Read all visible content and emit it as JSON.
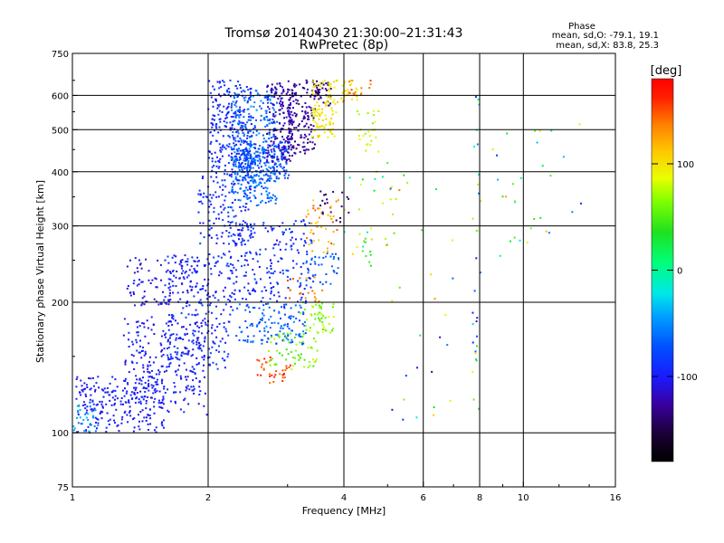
{
  "chart_data": {
    "type": "scatter",
    "title": "Tromsø 20140430 21:30:00–21:31:43",
    "subtitle": "RwPretec (8p)",
    "xlabel": "Frequency [MHz]",
    "ylabel": "Stationary phase Virtual Height [km]",
    "x_scale": "log",
    "y_scale": "log",
    "xlim": [
      1,
      16
    ],
    "ylim": [
      75,
      750
    ],
    "x_ticks": [
      1,
      2,
      4,
      6,
      8,
      10,
      16
    ],
    "x_tick_labels": [
      "1",
      "2",
      "4",
      "6",
      "8",
      "10",
      "16"
    ],
    "y_ticks": [
      75,
      100,
      200,
      300,
      400,
      500,
      600,
      750
    ],
    "y_tick_labels": [
      "75",
      "100",
      "200",
      "300",
      "400",
      "500",
      "600",
      "750"
    ],
    "grid": true,
    "colorbar": {
      "label": "[deg]",
      "range": [
        -180,
        180
      ],
      "ticks": [
        100,
        0,
        -100
      ],
      "tick_labels": [
        "100",
        "0",
        "-100"
      ]
    },
    "stats": {
      "heading": "Phase",
      "line_o": "mean, sd,O: -79.1, 19.1",
      "line_x": "mean, sd,X: 83.8, 25.3"
    },
    "clusters": [
      {
        "f": [
          1.02,
          1.6
        ],
        "h": [
          100,
          135
        ],
        "phase": [
          -112,
          -88
        ],
        "n": 220
      },
      {
        "f": [
          1.0,
          1.15
        ],
        "h": [
          100,
          116
        ],
        "phase": [
          -60,
          -30
        ],
        "n": 30
      },
      {
        "f": [
          1.3,
          2.0
        ],
        "h": [
          110,
          185
        ],
        "phase": [
          -115,
          -85
        ],
        "n": 260
      },
      {
        "f": [
          1.6,
          2.3
        ],
        "h": [
          140,
          260
        ],
        "phase": [
          -110,
          -75
        ],
        "n": 260
      },
      {
        "f": [
          1.3,
          1.9
        ],
        "h": [
          195,
          255
        ],
        "phase": [
          -118,
          -95
        ],
        "n": 90
      },
      {
        "f": [
          1.9,
          2.5
        ],
        "h": [
          270,
          400
        ],
        "phase": [
          -110,
          -75
        ],
        "n": 150
      },
      {
        "f": [
          2.0,
          2.5
        ],
        "h": [
          400,
          650
        ],
        "phase": [
          -110,
          -75
        ],
        "n": 250
      },
      {
        "f": [
          2.25,
          2.85
        ],
        "h": [
          330,
          620
        ],
        "phase": [
          -80,
          -45
        ],
        "n": 320
      },
      {
        "f": [
          2.25,
          3.05
        ],
        "h": [
          380,
          470
        ],
        "phase": [
          -95,
          -55
        ],
        "n": 200
      },
      {
        "f": [
          2.7,
          3.1
        ],
        "h": [
          420,
          640
        ],
        "phase": [
          -135,
          -110
        ],
        "n": 160
      },
      {
        "f": [
          3.0,
          3.45
        ],
        "h": [
          440,
          650
        ],
        "phase": [
          -140,
          -115
        ],
        "n": 140
      },
      {
        "f": [
          3.4,
          3.75
        ],
        "h": [
          560,
          650
        ],
        "phase": [
          -150,
          -120
        ],
        "n": 40
      },
      {
        "f": [
          3.4,
          3.9
        ],
        "h": [
          480,
          650
        ],
        "phase": [
          80,
          115
        ],
        "n": 100
      },
      {
        "f": [
          3.7,
          4.3
        ],
        "h": [
          580,
          650
        ],
        "phase": [
          80,
          120
        ],
        "n": 30
      },
      {
        "f": [
          4.1,
          4.6
        ],
        "h": [
          600,
          650
        ],
        "phase": [
          125,
          160
        ],
        "n": 14
      },
      {
        "f": [
          4.2,
          4.8
        ],
        "h": [
          430,
          560
        ],
        "phase": [
          60,
          95
        ],
        "n": 25
      },
      {
        "f": [
          2.2,
          3.4
        ],
        "h": [
          200,
          310
        ],
        "phase": [
          -110,
          -70
        ],
        "n": 200
      },
      {
        "f": [
          2.3,
          3.3
        ],
        "h": [
          160,
          200
        ],
        "phase": [
          -85,
          -50
        ],
        "n": 130
      },
      {
        "f": [
          2.55,
          3.05
        ],
        "h": [
          130,
          150
        ],
        "phase": [
          140,
          165
        ],
        "n": 35
      },
      {
        "f": [
          2.7,
          3.5
        ],
        "h": [
          140,
          170
        ],
        "phase": [
          40,
          80
        ],
        "n": 60
      },
      {
        "f": [
          3.2,
          3.8
        ],
        "h": [
          170,
          200
        ],
        "phase": [
          45,
          85
        ],
        "n": 50
      },
      {
        "f": [
          3.3,
          3.9
        ],
        "h": [
          260,
          350
        ],
        "phase": [
          105,
          150
        ],
        "n": 45
      },
      {
        "f": [
          3.3,
          3.9
        ],
        "h": [
          220,
          260
        ],
        "phase": [
          -85,
          -55
        ],
        "n": 40
      },
      {
        "f": [
          3.0,
          3.6
        ],
        "h": [
          200,
          230
        ],
        "phase": [
          120,
          155
        ],
        "n": 20
      },
      {
        "f": [
          3.5,
          4.2
        ],
        "h": [
          305,
          370
        ],
        "phase": [
          -150,
          -120
        ],
        "n": 20
      },
      {
        "f": [
          4.0,
          5.6
        ],
        "h": [
          250,
          450
        ],
        "phase": [
          -20,
          120
        ],
        "n": 30
      },
      {
        "f": [
          4.4,
          4.6
        ],
        "h": [
          235,
          285
        ],
        "phase": [
          25,
          55
        ],
        "n": 10
      },
      {
        "f": [
          5.0,
          7.0
        ],
        "h": [
          100,
          400
        ],
        "phase": [
          -140,
          150
        ],
        "n": 24
      },
      {
        "f": [
          7.7,
          8.05
        ],
        "h": [
          100,
          620
        ],
        "phase": [
          -120,
          110
        ],
        "n": 30
      },
      {
        "f": [
          8.5,
          13.5
        ],
        "h": [
          250,
          520
        ],
        "phase": [
          -90,
          130
        ],
        "n": 30
      }
    ]
  }
}
